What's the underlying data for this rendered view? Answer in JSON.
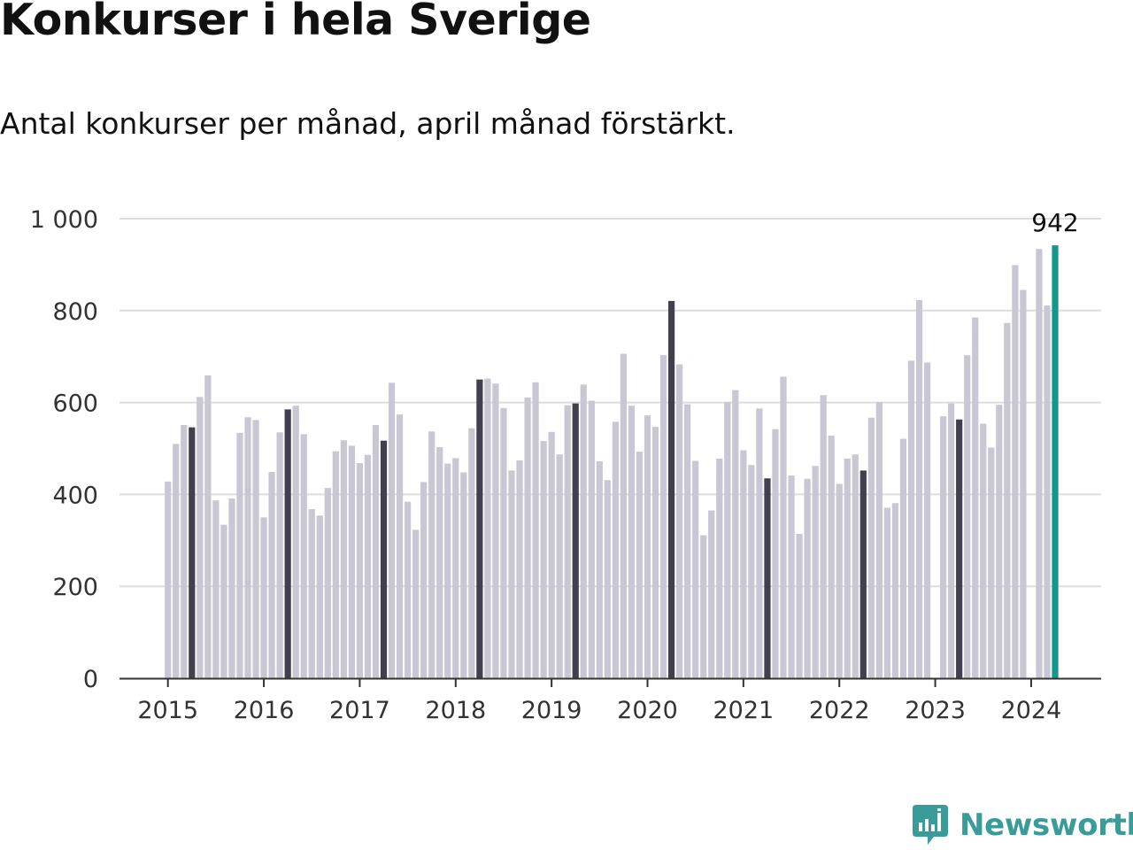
{
  "title": "Konkurser i hela Sverige",
  "subtitle": "Antal konkurser per månad, april månad förstärkt.",
  "brand": {
    "name": "Newsworthy",
    "icon": "bar-chart-speech-bubble-icon",
    "color": "#3a9c98"
  },
  "colors": {
    "bar": "#c8c7d3",
    "april": "#42404f",
    "latest": "#13968e",
    "grid": "#dddddd",
    "axis": "#333333"
  },
  "chart_data": {
    "type": "bar",
    "title": "Konkurser i hela Sverige",
    "subtitle": "Antal konkurser per månad, april månad förstärkt.",
    "xlabel": "",
    "ylabel": "",
    "ylim": [
      0,
      1000
    ],
    "y_ticks": [
      0,
      200,
      400,
      600,
      800,
      1000
    ],
    "y_tick_labels": [
      "0",
      "200",
      "400",
      "600",
      "800",
      "1 000"
    ],
    "x_tick_labels": [
      "2015",
      "2016",
      "2017",
      "2018",
      "2019",
      "2020",
      "2021",
      "2022",
      "2023",
      "2024"
    ],
    "start": "2015-01",
    "highlight": "april",
    "annotation": {
      "label": "942",
      "month": "2024-04"
    },
    "grid": true,
    "values": [
      428,
      510,
      551,
      546,
      612,
      659,
      387,
      334,
      391,
      534,
      568,
      562,
      350,
      449,
      535,
      585,
      593,
      531,
      368,
      354,
      414,
      494,
      518,
      506,
      468,
      486,
      551,
      517,
      643,
      574,
      384,
      323,
      427,
      537,
      503,
      467,
      479,
      448,
      544,
      650,
      652,
      641,
      588,
      452,
      474,
      611,
      644,
      516,
      536,
      487,
      594,
      598,
      639,
      604,
      472,
      431,
      558,
      706,
      593,
      493,
      572,
      547,
      703,
      821,
      683,
      596,
      473,
      311,
      365,
      478,
      601,
      627,
      496,
      464,
      587,
      435,
      542,
      656,
      441,
      314,
      434,
      462,
      616,
      528,
      423,
      478,
      487,
      452,
      567,
      601,
      371,
      381,
      521,
      691,
      823,
      687,
      null,
      570,
      598,
      563,
      703,
      785,
      554,
      502,
      595,
      773,
      899,
      845,
      null,
      934,
      811,
      942
    ]
  }
}
